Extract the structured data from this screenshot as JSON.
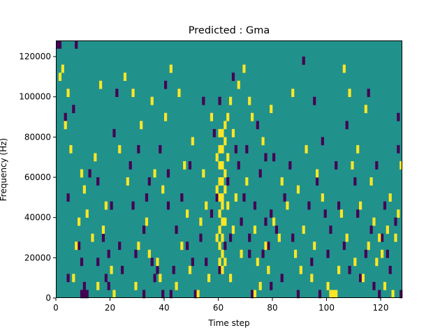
{
  "chart_data": {
    "type": "heatmap",
    "title": "Predicted : Gma",
    "xlabel": "Time step",
    "ylabel": "Frequency (Hz)",
    "xlim": [
      0,
      128
    ],
    "ylim": [
      0,
      128000
    ],
    "x_ticks": [
      0,
      20,
      40,
      60,
      80,
      100,
      120
    ],
    "x_tick_labels": [
      "0",
      "20",
      "40",
      "60",
      "80",
      "100",
      "120"
    ],
    "y_ticks": [
      0,
      20000,
      40000,
      60000,
      80000,
      100000,
      120000
    ],
    "y_tick_labels": [
      "0",
      "20000",
      "40000",
      "60000",
      "80000",
      "100000",
      "120000"
    ],
    "grid": false,
    "colors": {
      "low": "#440154",
      "mid": "#21918c",
      "high": "#fde725"
    },
    "value_levels": [
      -1,
      0,
      1
    ],
    "background_value": 0,
    "bin_height_hz": 4000,
    "cells": {
      "low": [
        [
          1,
          124000
        ],
        [
          2,
          124000
        ],
        [
          4,
          88000
        ],
        [
          5,
          48000
        ],
        [
          5,
          8000
        ],
        [
          7,
          92000
        ],
        [
          8,
          124000
        ],
        [
          9,
          24000
        ],
        [
          10,
          16000
        ],
        [
          10,
          0
        ],
        [
          11,
          4000
        ],
        [
          11,
          0
        ],
        [
          12,
          0
        ],
        [
          13,
          60000
        ],
        [
          16,
          56000
        ],
        [
          16,
          16000
        ],
        [
          18,
          28000
        ],
        [
          19,
          8000
        ],
        [
          20,
          20000
        ],
        [
          20,
          4000
        ],
        [
          21,
          44000
        ],
        [
          22,
          80000
        ],
        [
          23,
          100000
        ],
        [
          24,
          24000
        ],
        [
          25,
          12000
        ],
        [
          28,
          64000
        ],
        [
          29,
          44000
        ],
        [
          30,
          20000
        ],
        [
          31,
          72000
        ],
        [
          33,
          0
        ],
        [
          33,
          32000
        ],
        [
          34,
          48000
        ],
        [
          35,
          56000
        ],
        [
          36,
          16000
        ],
        [
          37,
          8000
        ],
        [
          38,
          12000
        ],
        [
          39,
          72000
        ],
        [
          40,
          0
        ],
        [
          41,
          104000
        ],
        [
          42,
          44000
        ],
        [
          42,
          60000
        ],
        [
          43,
          0
        ],
        [
          44,
          12000
        ],
        [
          45,
          32000
        ],
        [
          47,
          48000
        ],
        [
          49,
          24000
        ],
        [
          50,
          64000
        ],
        [
          51,
          16000
        ],
        [
          52,
          0
        ],
        [
          54,
          28000
        ],
        [
          55,
          96000
        ],
        [
          56,
          16000
        ],
        [
          58,
          40000
        ],
        [
          59,
          80000
        ],
        [
          60,
          48000
        ],
        [
          61,
          96000
        ],
        [
          63,
          24000
        ],
        [
          65,
          28000
        ],
        [
          66,
          108000
        ],
        [
          67,
          72000
        ],
        [
          68,
          64000
        ],
        [
          69,
          36000
        ],
        [
          70,
          48000
        ],
        [
          71,
          72000
        ],
        [
          72,
          28000
        ],
        [
          73,
          0
        ],
        [
          74,
          44000
        ],
        [
          75,
          84000
        ],
        [
          76,
          60000
        ],
        [
          77,
          20000
        ],
        [
          78,
          36000
        ],
        [
          79,
          24000
        ],
        [
          80,
          40000
        ],
        [
          81,
          68000
        ],
        [
          82,
          32000
        ],
        [
          84,
          8000
        ],
        [
          85,
          48000
        ],
        [
          87,
          64000
        ],
        [
          88,
          28000
        ],
        [
          90,
          0
        ],
        [
          92,
          116000
        ],
        [
          94,
          44000
        ],
        [
          95,
          16000
        ],
        [
          96,
          96000
        ],
        [
          97,
          56000
        ],
        [
          98,
          0
        ],
        [
          99,
          76000
        ],
        [
          100,
          40000
        ],
        [
          101,
          20000
        ],
        [
          102,
          32000
        ],
        [
          103,
          0
        ],
        [
          104,
          64000
        ],
        [
          105,
          44000
        ],
        [
          107,
          24000
        ],
        [
          108,
          84000
        ],
        [
          109,
          12000
        ],
        [
          111,
          56000
        ],
        [
          112,
          40000
        ],
        [
          113,
          8000
        ],
        [
          115,
          20000
        ],
        [
          116,
          100000
        ],
        [
          117,
          32000
        ],
        [
          118,
          4000
        ],
        [
          119,
          64000
        ],
        [
          120,
          0
        ],
        [
          121,
          28000
        ],
        [
          122,
          44000
        ],
        [
          123,
          20000
        ],
        [
          124,
          12000
        ],
        [
          126,
          36000
        ],
        [
          127,
          72000
        ],
        [
          127,
          88000
        ],
        [
          128,
          0
        ],
        [
          61,
          12000
        ],
        [
          80,
          4000
        ],
        [
          64,
          56000
        ],
        [
          72,
          20000
        ],
        [
          78,
          68000
        ]
      ],
      "high": [
        [
          2,
          108000
        ],
        [
          3,
          112000
        ],
        [
          4,
          84000
        ],
        [
          5,
          100000
        ],
        [
          6,
          72000
        ],
        [
          7,
          8000
        ],
        [
          8,
          24000
        ],
        [
          9,
          36000
        ],
        [
          10,
          60000
        ],
        [
          11,
          52000
        ],
        [
          12,
          40000
        ],
        [
          14,
          28000
        ],
        [
          15,
          68000
        ],
        [
          16,
          4000
        ],
        [
          17,
          104000
        ],
        [
          18,
          32000
        ],
        [
          19,
          44000
        ],
        [
          21,
          12000
        ],
        [
          22,
          0
        ],
        [
          24,
          72000
        ],
        [
          26,
          108000
        ],
        [
          27,
          56000
        ],
        [
          29,
          100000
        ],
        [
          30,
          4000
        ],
        [
          31,
          24000
        ],
        [
          32,
          84000
        ],
        [
          34,
          36000
        ],
        [
          35,
          20000
        ],
        [
          36,
          96000
        ],
        [
          37,
          60000
        ],
        [
          38,
          16000
        ],
        [
          39,
          8000
        ],
        [
          40,
          52000
        ],
        [
          41,
          88000
        ],
        [
          43,
          112000
        ],
        [
          45,
          4000
        ],
        [
          46,
          100000
        ],
        [
          47,
          24000
        ],
        [
          48,
          64000
        ],
        [
          49,
          40000
        ],
        [
          50,
          12000
        ],
        [
          51,
          76000
        ],
        [
          53,
          0
        ],
        [
          54,
          36000
        ],
        [
          55,
          60000
        ],
        [
          56,
          44000
        ],
        [
          57,
          8000
        ],
        [
          58,
          88000
        ],
        [
          60,
          68000
        ],
        [
          60,
          28000
        ],
        [
          61,
          80000
        ],
        [
          61,
          72000
        ],
        [
          61,
          64000
        ],
        [
          61,
          56000
        ],
        [
          61,
          48000
        ],
        [
          61,
          40000
        ],
        [
          61,
          32000
        ],
        [
          61,
          24000
        ],
        [
          61,
          16000
        ],
        [
          62,
          80000
        ],
        [
          62,
          72000
        ],
        [
          62,
          64000
        ],
        [
          62,
          56000
        ],
        [
          62,
          48000
        ],
        [
          62,
          44000
        ],
        [
          62,
          36000
        ],
        [
          62,
          28000
        ],
        [
          62,
          20000
        ],
        [
          62,
          12000
        ],
        [
          63,
          84000
        ],
        [
          63,
          76000
        ],
        [
          63,
          60000
        ],
        [
          63,
          52000
        ],
        [
          63,
          36000
        ],
        [
          63,
          16000
        ],
        [
          64,
          88000
        ],
        [
          64,
          68000
        ],
        [
          64,
          44000
        ],
        [
          65,
          96000
        ],
        [
          66,
          80000
        ],
        [
          67,
          48000
        ],
        [
          68,
          104000
        ],
        [
          69,
          20000
        ],
        [
          70,
          112000
        ],
        [
          71,
          56000
        ],
        [
          72,
          96000
        ],
        [
          73,
          88000
        ],
        [
          74,
          32000
        ],
        [
          75,
          16000
        ],
        [
          76,
          4000
        ],
        [
          77,
          76000
        ],
        [
          78,
          24000
        ],
        [
          79,
          12000
        ],
        [
          80,
          92000
        ],
        [
          81,
          36000
        ],
        [
          83,
          28000
        ],
        [
          84,
          56000
        ],
        [
          86,
          44000
        ],
        [
          88,
          100000
        ],
        [
          89,
          20000
        ],
        [
          90,
          52000
        ],
        [
          91,
          12000
        ],
        [
          92,
          32000
        ],
        [
          93,
          72000
        ],
        [
          95,
          8000
        ],
        [
          96,
          24000
        ],
        [
          97,
          60000
        ],
        [
          99,
          48000
        ],
        [
          101,
          4000
        ],
        [
          102,
          0
        ],
        [
          103,
          0
        ],
        [
          104,
          0
        ],
        [
          105,
          12000
        ],
        [
          106,
          40000
        ],
        [
          107,
          112000
        ],
        [
          108,
          28000
        ],
        [
          109,
          100000
        ],
        [
          110,
          64000
        ],
        [
          111,
          16000
        ],
        [
          112,
          72000
        ],
        [
          113,
          44000
        ],
        [
          114,
          8000
        ],
        [
          115,
          92000
        ],
        [
          116,
          24000
        ],
        [
          117,
          56000
        ],
        [
          118,
          36000
        ],
        [
          119,
          16000
        ],
        [
          120,
          28000
        ],
        [
          121,
          20000
        ],
        [
          122,
          4000
        ],
        [
          123,
          32000
        ],
        [
          124,
          48000
        ],
        [
          125,
          0
        ],
        [
          126,
          28000
        ],
        [
          127,
          40000
        ],
        [
          128,
          64000
        ],
        [
          60,
          52000
        ],
        [
          65,
          8000
        ],
        [
          66,
          32000
        ],
        [
          74,
          0
        ]
      ]
    }
  }
}
